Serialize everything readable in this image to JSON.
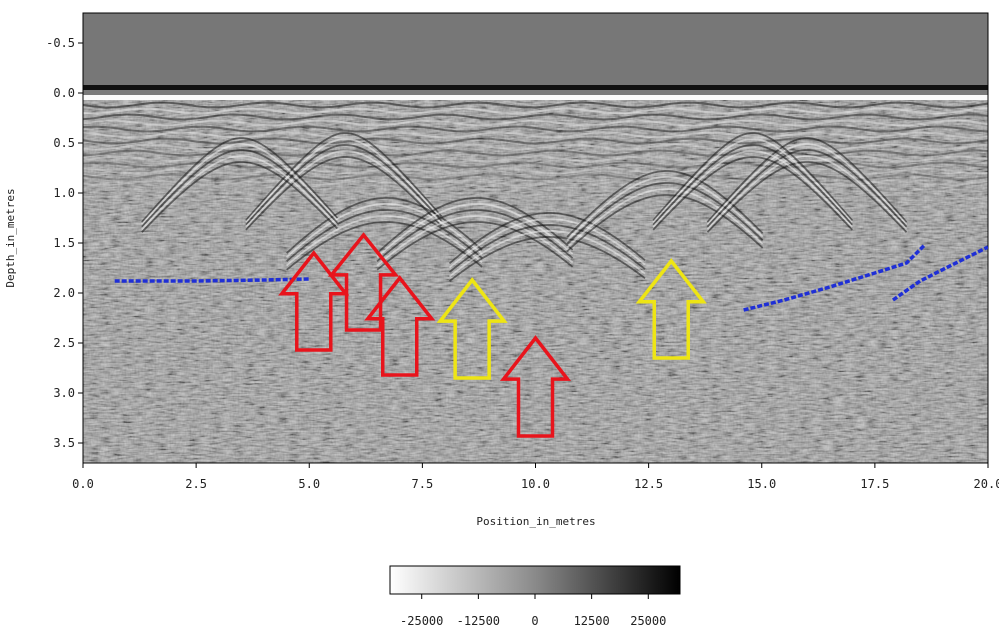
{
  "chart_data": {
    "type": "heatmap",
    "title": "",
    "xlabel": "Position_in_metres",
    "ylabel": "Depth_in_metres",
    "xlim": [
      0.0,
      20.0
    ],
    "ylim": [
      -0.8,
      3.7
    ],
    "y_inverted": true,
    "x_ticks": [
      "0.0",
      "2.5",
      "5.0",
      "7.5",
      "10.0",
      "12.5",
      "15.0",
      "17.5",
      "20.0"
    ],
    "y_ticks": [
      "-0.5",
      "0.0",
      "0.5",
      "1.0",
      "1.5",
      "2.0",
      "2.5",
      "3.0",
      "3.5"
    ],
    "colorbar": {
      "colormap": "grayscale",
      "range": [
        -32000,
        32000
      ],
      "ticks": [
        "-25000",
        "-12500",
        "0",
        "12500",
        "25000"
      ],
      "low_color": "#ffffff",
      "high_color": "#000000"
    },
    "interfaces": [
      {
        "color": "#1f2fd6",
        "points": [
          [
            0.7,
            1.88
          ],
          [
            2.5,
            1.88
          ],
          [
            4.0,
            1.87
          ],
          [
            5.0,
            1.86
          ]
        ]
      },
      {
        "color": "#1f2fd6",
        "points": [
          [
            14.6,
            2.17
          ],
          [
            15.5,
            2.07
          ],
          [
            16.5,
            1.94
          ],
          [
            17.5,
            1.8
          ],
          [
            18.2,
            1.7
          ],
          [
            18.6,
            1.52
          ]
        ]
      },
      {
        "color": "#1f2fd6",
        "points": [
          [
            17.9,
            2.07
          ],
          [
            18.5,
            1.88
          ],
          [
            19.2,
            1.72
          ],
          [
            20.0,
            1.54
          ]
        ]
      }
    ],
    "annotations": [
      {
        "kind": "arrow-up",
        "color": "#e8141c",
        "x": 5.1,
        "tip_depth": 1.6,
        "base_depth": 2.57
      },
      {
        "kind": "arrow-up",
        "color": "#e8141c",
        "x": 6.2,
        "tip_depth": 1.42,
        "base_depth": 2.37
      },
      {
        "kind": "arrow-up",
        "color": "#e8141c",
        "x": 7.0,
        "tip_depth": 1.85,
        "base_depth": 2.82
      },
      {
        "kind": "arrow-up",
        "color": "#eee514",
        "x": 8.6,
        "tip_depth": 1.87,
        "base_depth": 2.85
      },
      {
        "kind": "arrow-up",
        "color": "#e8141c",
        "x": 10.0,
        "tip_depth": 2.45,
        "base_depth": 3.43
      },
      {
        "kind": "arrow-up",
        "color": "#eee514",
        "x": 13.0,
        "tip_depth": 1.68,
        "base_depth": 2.65
      }
    ]
  }
}
